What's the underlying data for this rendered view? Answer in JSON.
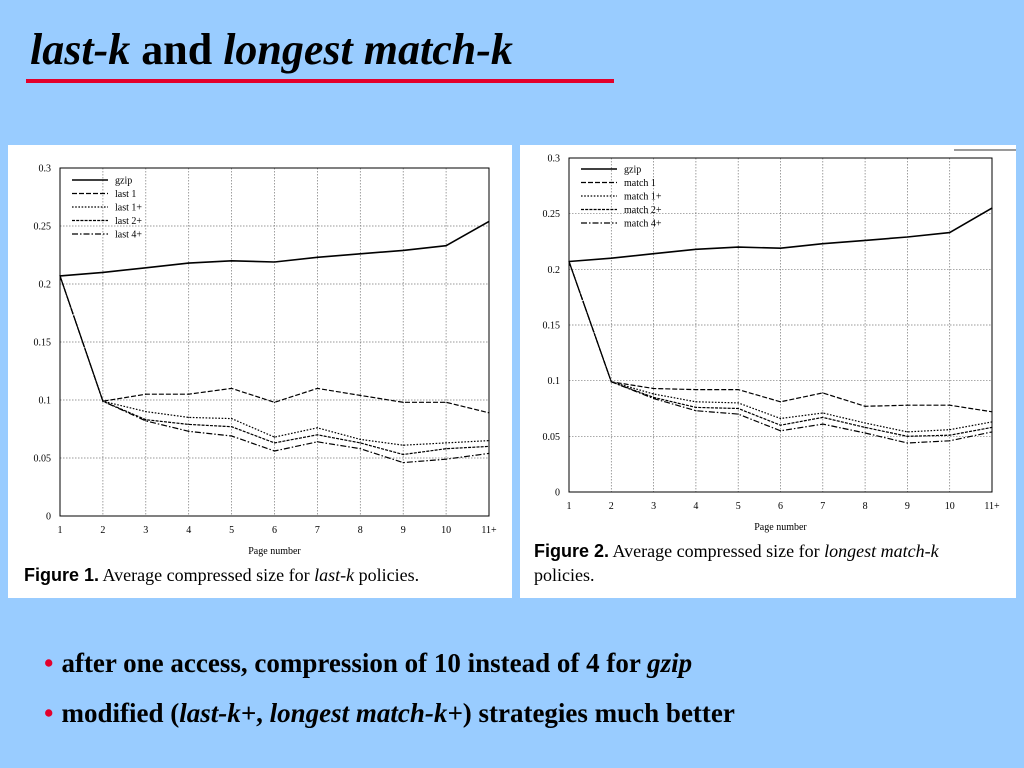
{
  "slide": {
    "title": {
      "part1": "last-k",
      "part2": " and ",
      "part3": "longest match-k"
    },
    "accent_color": "#e3002b",
    "background_color": "#99ccff",
    "bullets": [
      {
        "text": "after one access, compression of 10 instead of 4 for ",
        "em": "gzip"
      },
      {
        "segments": [
          "modified (",
          "last-k+",
          ", ",
          "longest match-k+",
          ") strategies much better"
        ]
      }
    ]
  },
  "chart_data": [
    {
      "type": "line",
      "figure_label": "Figure 1.",
      "caption_pre": " Average compressed size for ",
      "caption_em": "last-k",
      "caption_post": " policies.",
      "xlabel": "Page number",
      "ylabel": "",
      "x_ticks": [
        "1",
        "2",
        "3",
        "4",
        "5",
        "6",
        "7",
        "8",
        "9",
        "10",
        "11+"
      ],
      "y_ticks": [
        "0",
        "0.05",
        "0.1",
        "0.15",
        "0.2",
        "0.25",
        "0.3"
      ],
      "ylim": [
        0,
        0.3
      ],
      "grid": true,
      "legend_position": "top-left",
      "series": [
        {
          "name": "gzip",
          "dash": "solid",
          "values": [
            0.207,
            0.21,
            0.214,
            0.218,
            0.22,
            0.219,
            0.223,
            0.226,
            0.229,
            0.233,
            0.254
          ]
        },
        {
          "name": "last 1",
          "dash": "dashed",
          "values": [
            0.207,
            0.099,
            0.105,
            0.105,
            0.11,
            0.098,
            0.11,
            0.104,
            0.098,
            0.098,
            0.089
          ]
        },
        {
          "name": "last 1+",
          "dash": "dotted",
          "values": [
            0.207,
            0.099,
            0.09,
            0.085,
            0.084,
            0.068,
            0.076,
            0.066,
            0.061,
            0.063,
            0.065
          ]
        },
        {
          "name": "last 2+",
          "dash": "dashed-dense",
          "values": [
            0.207,
            0.099,
            0.083,
            0.079,
            0.077,
            0.063,
            0.07,
            0.063,
            0.053,
            0.058,
            0.06
          ]
        },
        {
          "name": "last 4+",
          "dash": "dash-dot",
          "values": [
            0.207,
            0.099,
            0.082,
            0.073,
            0.069,
            0.056,
            0.064,
            0.058,
            0.046,
            0.049,
            0.054
          ]
        }
      ]
    },
    {
      "type": "line",
      "figure_label": "Figure 2.",
      "caption_pre": " Average compressed size for ",
      "caption_em": "longest match-k",
      "caption_post": " policies.",
      "xlabel": "Page number",
      "ylabel": "",
      "x_ticks": [
        "1",
        "2",
        "3",
        "4",
        "5",
        "6",
        "7",
        "8",
        "9",
        "10",
        "11+"
      ],
      "y_ticks": [
        "0",
        "0.05",
        "0.1",
        "0.15",
        "0.2",
        "0.25",
        "0.3"
      ],
      "ylim": [
        0,
        0.3
      ],
      "grid": true,
      "legend_position": "top-left",
      "series": [
        {
          "name": "gzip",
          "dash": "solid",
          "values": [
            0.207,
            0.21,
            0.214,
            0.218,
            0.22,
            0.219,
            0.223,
            0.226,
            0.229,
            0.233,
            0.255
          ]
        },
        {
          "name": "match 1",
          "dash": "dashed",
          "values": [
            0.207,
            0.099,
            0.093,
            0.092,
            0.092,
            0.081,
            0.089,
            0.077,
            0.078,
            0.078,
            0.072
          ]
        },
        {
          "name": "match 1+",
          "dash": "dotted",
          "values": [
            0.207,
            0.099,
            0.088,
            0.081,
            0.08,
            0.066,
            0.071,
            0.062,
            0.054,
            0.056,
            0.063
          ]
        },
        {
          "name": "match 2+",
          "dash": "dashed-dense",
          "values": [
            0.207,
            0.099,
            0.085,
            0.076,
            0.075,
            0.06,
            0.067,
            0.058,
            0.05,
            0.051,
            0.058
          ]
        },
        {
          "name": "match 4+",
          "dash": "dash-dot",
          "values": [
            0.207,
            0.099,
            0.084,
            0.073,
            0.07,
            0.055,
            0.061,
            0.053,
            0.044,
            0.046,
            0.054
          ]
        }
      ]
    }
  ]
}
